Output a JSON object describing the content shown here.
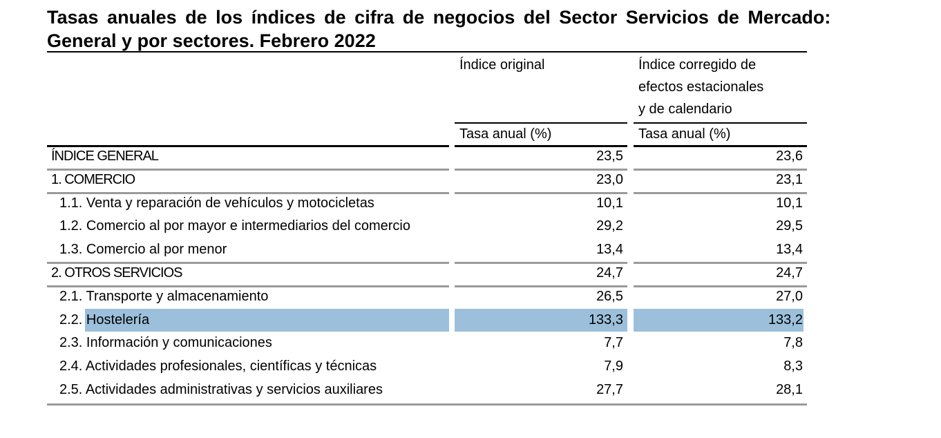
{
  "title": {
    "line1": "Tasas anuales de los índices de cifra de negocios del Sector Servicios de Mercado:",
    "line2": "General y por sectores. Febrero 2022"
  },
  "columns": {
    "original": {
      "header": [
        "Índice original"
      ],
      "sub": "Tasa anual (%)"
    },
    "corrected": {
      "header": [
        "Índice corregido de",
        "efectos estacionales",
        "y de calendario"
      ],
      "sub": "Tasa anual (%)"
    }
  },
  "rows": [
    {
      "label": "ÍNDICE GENERAL",
      "original": "23,5",
      "corrected": "23,6"
    },
    {
      "label": "1. COMERCIO",
      "original": "23,0",
      "corrected": "23,1"
    },
    {
      "label": "1.1. Venta y reparación de vehículos y motocicletas",
      "original": "10,1",
      "corrected": "10,1"
    },
    {
      "label": "1.2. Comercio al por mayor e intermediarios del comercio",
      "original": "29,2",
      "corrected": "29,5"
    },
    {
      "label": "1.3. Comercio al por menor",
      "original": "13,4",
      "corrected": "13,4"
    },
    {
      "label": "2. OTROS SERVICIOS",
      "original": "24,7",
      "corrected": "24,7"
    },
    {
      "label": "2.1. Transporte y almacenamiento",
      "original": "26,5",
      "corrected": "27,0"
    },
    {
      "label": "2.2. Hostelería",
      "original": "133,3",
      "corrected": "133,2"
    },
    {
      "label": "2.3. Información y comunicaciones",
      "original": "7,7",
      "corrected": "7,8"
    },
    {
      "label": "2.4. Actividades profesionales, científicas y técnicas",
      "original": "7,9",
      "corrected": "8,3"
    },
    {
      "label": "2.5. Actividades administrativas y servicios auxiliares",
      "original": "27,7",
      "corrected": "28,1"
    }
  ],
  "colors": {
    "highlight": "#9cc0db",
    "rule_grey": "#9a9a9a"
  }
}
